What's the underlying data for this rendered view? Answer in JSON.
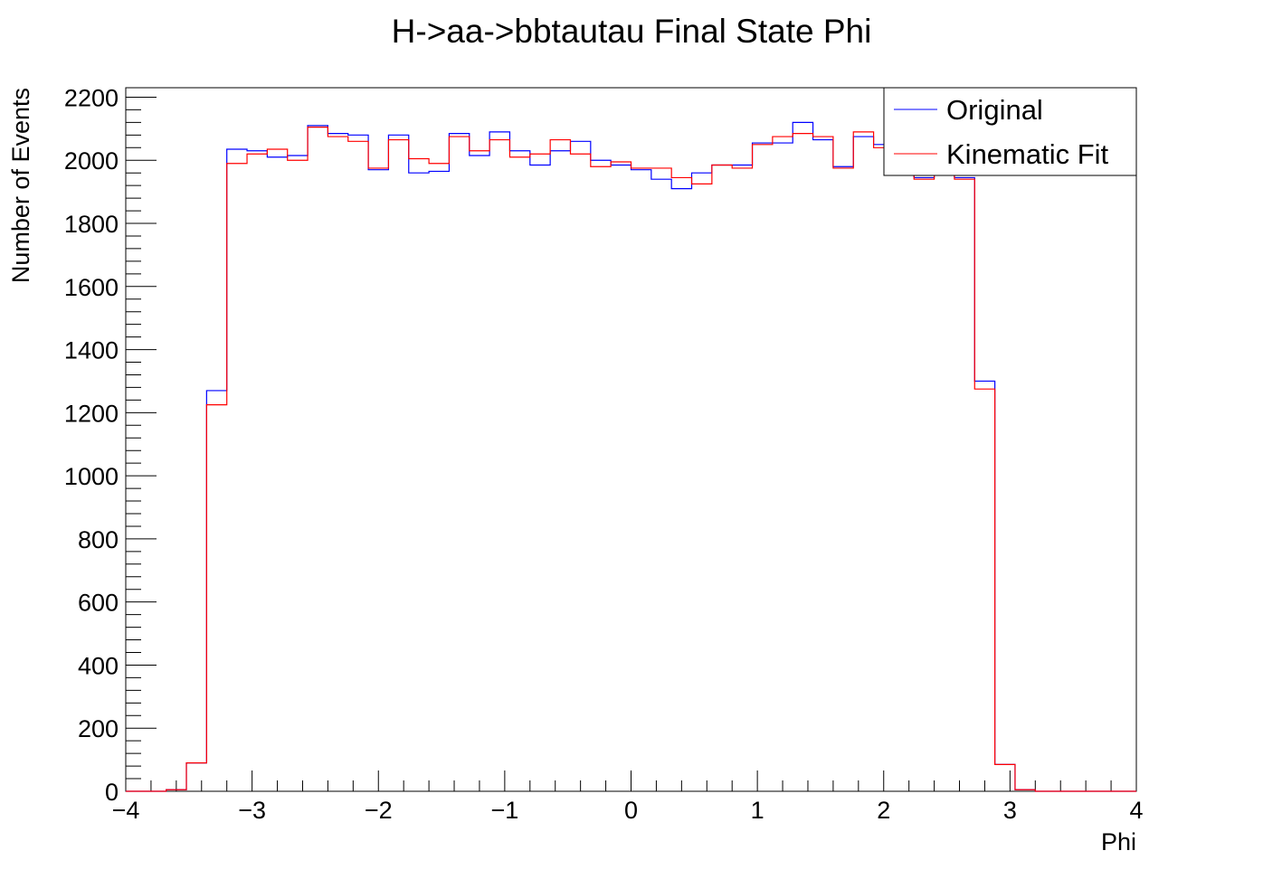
{
  "chart_data": {
    "type": "histogram",
    "title": "H->aa->bbtautau Final State Phi",
    "xlabel": "Phi",
    "ylabel": "Number of Events",
    "xlim": [
      -4,
      4
    ],
    "ylim": [
      0,
      2230
    ],
    "bin_width": 0.16,
    "x_ticks": [
      "−4",
      "−3",
      "−2",
      "−1",
      "0",
      "1",
      "2",
      "3",
      "4"
    ],
    "y_ticks": [
      "0",
      "200",
      "400",
      "600",
      "800",
      "1000",
      "1200",
      "1400",
      "1600",
      "1800",
      "2000",
      "2200"
    ],
    "legend_position": "top-right",
    "series": [
      {
        "name": "Original",
        "color": "#0000ff",
        "values": [
          0,
          0,
          5,
          90,
          1270,
          2035,
          2030,
          2010,
          2015,
          2110,
          2085,
          2080,
          1970,
          2080,
          1960,
          1965,
          2085,
          2015,
          2090,
          2030,
          1985,
          2030,
          2060,
          2000,
          1985,
          1970,
          1940,
          1910,
          1960,
          1985,
          1985,
          2055,
          2055,
          2120,
          2065,
          1980,
          2075,
          2050,
          2010,
          1945,
          1955,
          1945,
          1300,
          85,
          5,
          0,
          0,
          0,
          0,
          0
        ]
      },
      {
        "name": "Kinematic Fit",
        "color": "#ff0000",
        "values": [
          0,
          0,
          5,
          90,
          1225,
          1990,
          2020,
          2035,
          2000,
          2105,
          2075,
          2060,
          1975,
          2065,
          2005,
          1990,
          2075,
          2030,
          2065,
          2010,
          2020,
          2065,
          2020,
          1980,
          1995,
          1975,
          1975,
          1945,
          1925,
          1985,
          1975,
          2050,
          2075,
          2085,
          2075,
          1975,
          2090,
          2040,
          2000,
          1940,
          1965,
          1940,
          1275,
          85,
          5,
          0,
          0,
          0,
          0,
          0
        ]
      }
    ]
  }
}
